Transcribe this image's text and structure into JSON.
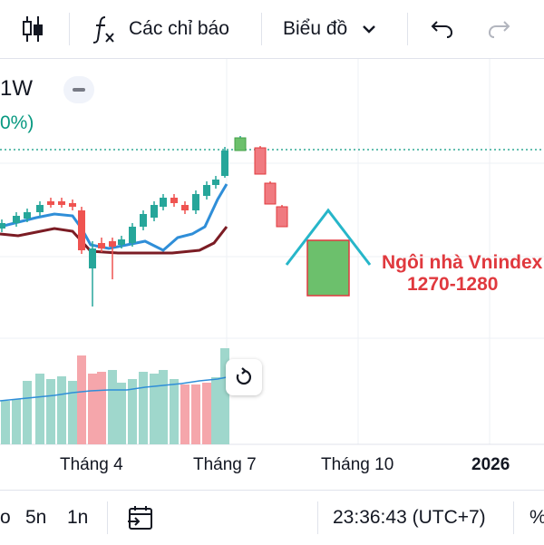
{
  "toolbar": {
    "candles_icon": "candles-icon",
    "indicators_icon": "fx-icon",
    "indicators_label": "Các chỉ báo",
    "chart_type_label": "Biểu đồ",
    "undo_icon": "undo-icon",
    "redo_icon": "redo-icon"
  },
  "legend": {
    "interval": "1W",
    "change_pct": "0%)"
  },
  "annotation": {
    "line1": "Ngôi nhà Vnindex",
    "line2": "1270-1280"
  },
  "time_axis": {
    "labels": [
      "Tháng 4",
      "Tháng 7",
      "Tháng 10",
      "2026"
    ]
  },
  "bottom_bar": {
    "range_partial": "o",
    "range_5n": "5n",
    "range_1n": "1n",
    "date_range_icon": "calendar-goto-icon",
    "clock": "23:36:43 (UTC+7)",
    "percent_partial": "%"
  },
  "colors": {
    "up": "#26a69a",
    "down": "#ef5350",
    "volume_up": "#9fd7cc",
    "volume_down": "#f5a6ab",
    "ma_blue": "#2f8ed8",
    "ma_dark": "#7b1c24",
    "annotation_red": "#e0393e",
    "house_roof": "#26b6c9",
    "house_body": "#6cc06c"
  }
}
